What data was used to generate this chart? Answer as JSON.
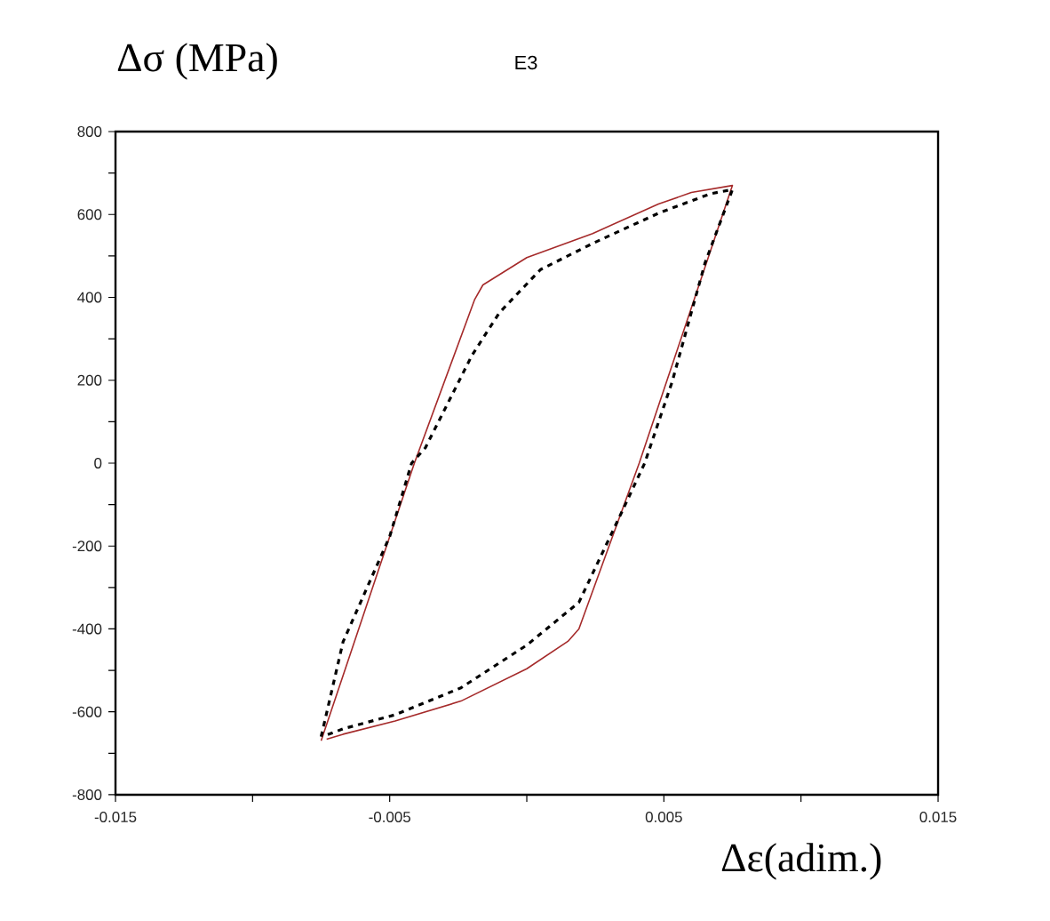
{
  "chart_data": {
    "type": "line",
    "title": "E3",
    "xlabel": "Δε(adim.)",
    "ylabel": "Δσ (MPa)",
    "xlim": [
      -0.015,
      0.015
    ],
    "ylim": [
      -800,
      800
    ],
    "xticks": [
      -0.015,
      {
        "value": -0.01,
        "label": null
      },
      -0.005,
      {
        "value": 0,
        "label": null
      },
      0.005,
      {
        "value": 0.01,
        "label": null
      },
      0.015
    ],
    "yticks": [
      -800,
      {
        "value": -700,
        "label": null
      },
      -600,
      {
        "value": -500,
        "label": null
      },
      -400,
      {
        "value": -300,
        "label": null
      },
      -200,
      {
        "value": -100,
        "label": null
      },
      0,
      {
        "value": 100,
        "label": null
      },
      200,
      {
        "value": 300,
        "label": null
      },
      400,
      {
        "value": 500,
        "label": null
      },
      600,
      {
        "value": 700,
        "label": null
      },
      800
    ],
    "grid": false,
    "marker": "none",
    "series": [
      {
        "color": "#a52a2a",
        "line_style": "solid",
        "x": [
          -0.0075,
          -0.0041,
          -0.0019,
          -0.0016,
          0.0,
          0.0024,
          0.0048,
          0.006,
          0.0075,
          0.0041,
          0.0019,
          0.0015,
          0.0,
          -0.0024,
          -0.0048,
          -0.0067,
          -0.0073
        ],
        "values": [
          -670,
          0,
          395,
          430,
          496,
          554,
          625,
          653,
          670,
          0,
          -400,
          -430,
          -496,
          -574,
          -622,
          -654,
          -666
        ]
      },
      {
        "color": "#000000",
        "line_style": "dashed",
        "x": [
          -0.0075,
          -0.0067,
          -0.005,
          -0.0042,
          -0.0037,
          -0.002,
          -0.001,
          0.0005,
          0.0024,
          0.0048,
          0.0067,
          0.0075,
          0.0065,
          0.0053,
          0.0043,
          0.0035,
          0.0019,
          0.0,
          -0.0024,
          -0.0048,
          -0.0067,
          -0.0073
        ],
        "values": [
          -660,
          -431,
          -177,
          0,
          37,
          260,
          363,
          467,
          530,
          603,
          650,
          660,
          483,
          196,
          0,
          -113,
          -336,
          -439,
          -542,
          -607,
          -641,
          -656
        ]
      }
    ]
  }
}
